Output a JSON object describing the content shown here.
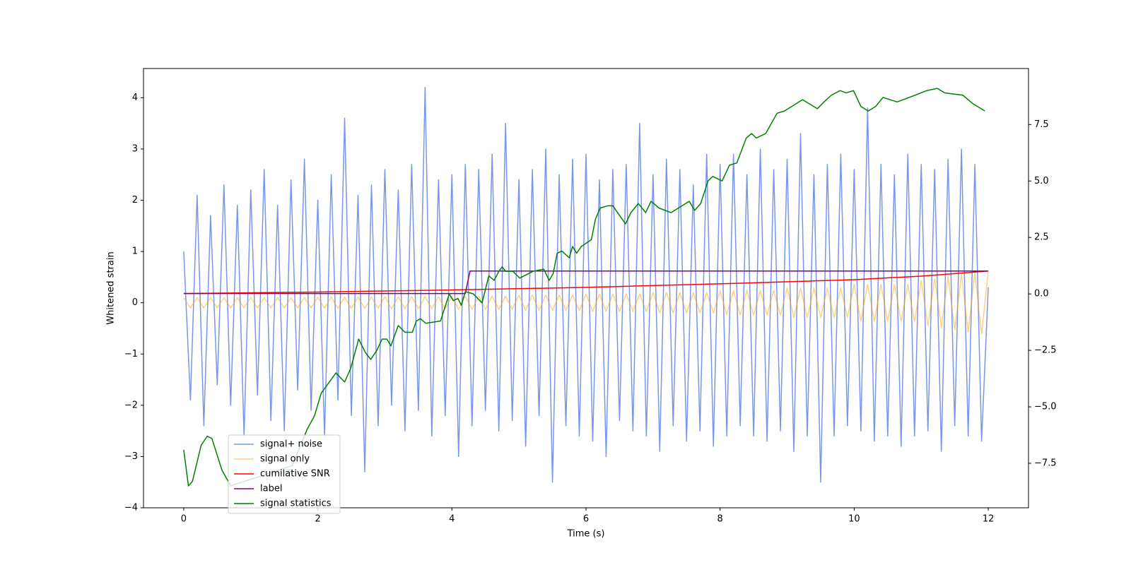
{
  "chart_data": {
    "type": "line",
    "xlabel": "Time (s)",
    "ylabel": "Whitened strain",
    "xlim": [
      -0.6,
      12.6
    ],
    "ylim": [
      -4,
      4.57
    ],
    "y2lim": [
      -9.47,
      9.98
    ],
    "xticks": [
      0,
      2,
      4,
      6,
      8,
      10,
      12
    ],
    "yticks": [
      {
        "value": -4,
        "label": "−4"
      },
      {
        "value": -3,
        "label": "−3"
      },
      {
        "value": -2,
        "label": "−2"
      },
      {
        "value": -1,
        "label": "−1"
      },
      0,
      1,
      2,
      3,
      4
    ],
    "y2ticks": [
      {
        "value": -7.5,
        "label": "−7.5"
      },
      {
        "value": -5,
        "label": "−5.0"
      },
      {
        "value": -2.5,
        "label": "−2.5"
      },
      {
        "value": 0,
        "label": "0.0"
      },
      2.5,
      {
        "value": 5,
        "label": "5.0"
      },
      7.5
    ],
    "legend": "lower left",
    "x": [
      0,
      0.1,
      0.2,
      0.3,
      0.4,
      0.5,
      0.6,
      0.7,
      0.8,
      0.9,
      1,
      1.1,
      1.2,
      1.3,
      1.4,
      1.5,
      1.6,
      1.7,
      1.8,
      1.9,
      2,
      2.1,
      2.2,
      2.3,
      2.4,
      2.5,
      2.6,
      2.7,
      2.8,
      2.9,
      3,
      3.1,
      3.2,
      3.3,
      3.4,
      3.5,
      3.6,
      3.7,
      3.8,
      3.9,
      4,
      4.1,
      4.2,
      4.3,
      4.4,
      4.5,
      4.6,
      4.7,
      4.8,
      4.9,
      5,
      5.1,
      5.2,
      5.3,
      5.4,
      5.5,
      5.6,
      5.7,
      5.8,
      5.9,
      6,
      6.1,
      6.2,
      6.3,
      6.4,
      6.5,
      6.6,
      6.7,
      6.8,
      6.9,
      7,
      7.1,
      7.2,
      7.3,
      7.4,
      7.5,
      7.6,
      7.7,
      7.8,
      7.9,
      8,
      8.1,
      8.2,
      8.3,
      8.4,
      8.5,
      8.6,
      8.7,
      8.8,
      8.9,
      9,
      9.1,
      9.2,
      9.3,
      9.4,
      9.5,
      9.6,
      9.7,
      9.8,
      9.9,
      10,
      10.1,
      10.2,
      10.3,
      10.4,
      10.5,
      10.6,
      10.7,
      10.8,
      10.9,
      11,
      11.1,
      11.2,
      11.3,
      11.4,
      11.5,
      11.6,
      11.7,
      11.8,
      11.9,
      12
    ],
    "series": [
      {
        "name": "signal+ noise",
        "color": "#4169e1",
        "alpha": 0.7,
        "values": [
          1.0,
          -1.9,
          2.1,
          -2.4,
          1.7,
          -1.6,
          2.3,
          -2.0,
          1.9,
          -2.6,
          2.2,
          -1.8,
          2.6,
          -2.3,
          1.9,
          -2.5,
          2.4,
          -1.7,
          2.8,
          -2.1,
          2.0,
          -2.6,
          2.5,
          -1.9,
          3.6,
          -2.2,
          2.1,
          -3.3,
          2.3,
          -2.4,
          2.6,
          -2.0,
          2.2,
          -2.5,
          2.7,
          -2.1,
          4.2,
          -2.6,
          2.4,
          -2.2,
          2.5,
          -3.0,
          2.7,
          -2.4,
          2.6,
          -2.1,
          2.9,
          -2.5,
          3.5,
          -2.3,
          2.4,
          -2.8,
          2.6,
          -2.2,
          3.0,
          -3.5,
          2.5,
          -2.4,
          2.8,
          -2.6,
          2.9,
          -2.7,
          2.4,
          -3.0,
          2.6,
          -2.3,
          2.7,
          -2.5,
          3.5,
          -2.6,
          2.5,
          -2.9,
          2.8,
          -2.4,
          2.6,
          -2.7,
          2.3,
          -2.5,
          2.9,
          -2.8,
          2.7,
          -2.6,
          2.9,
          -2.4,
          2.5,
          -2.6,
          3.0,
          -2.7,
          2.6,
          -2.5,
          2.8,
          -2.9,
          3.3,
          -2.6,
          2.5,
          -3.5,
          2.7,
          -2.6,
          2.9,
          -2.4,
          2.6,
          -2.5,
          3.8,
          -2.7,
          2.7,
          -2.6,
          2.5,
          -2.8,
          2.9,
          -2.6,
          2.7,
          -2.5,
          2.6,
          -2.9,
          2.8,
          -2.4,
          3.0,
          -2.6,
          2.7,
          -2.7,
          0.3
        ]
      },
      {
        "name": "signal only",
        "color": "#ffa500",
        "alpha": 0.5,
        "values": [
          0.1,
          -0.1,
          0.1,
          -0.1,
          0.1,
          -0.1,
          0.1,
          -0.1,
          0.1,
          -0.1,
          0.1,
          -0.1,
          0.1,
          -0.1,
          0.1,
          -0.1,
          0.1,
          -0.1,
          0.1,
          -0.1,
          0.11,
          -0.11,
          0.11,
          -0.11,
          0.11,
          -0.11,
          0.11,
          -0.11,
          0.11,
          -0.11,
          0.12,
          -0.12,
          0.12,
          -0.12,
          0.12,
          -0.12,
          0.12,
          -0.12,
          0.12,
          -0.12,
          0.13,
          -0.13,
          0.13,
          -0.13,
          0.13,
          -0.13,
          0.13,
          -0.13,
          0.13,
          -0.13,
          0.15,
          -0.15,
          0.15,
          -0.15,
          0.15,
          -0.15,
          0.15,
          -0.15,
          0.15,
          -0.15,
          0.17,
          -0.17,
          0.17,
          -0.17,
          0.17,
          -0.17,
          0.17,
          -0.17,
          0.17,
          -0.17,
          0.2,
          -0.2,
          0.2,
          -0.2,
          0.2,
          -0.2,
          0.2,
          -0.2,
          0.2,
          -0.2,
          0.24,
          -0.24,
          0.24,
          -0.24,
          0.24,
          -0.24,
          0.24,
          -0.24,
          0.24,
          -0.24,
          0.29,
          -0.29,
          0.29,
          -0.29,
          0.29,
          -0.29,
          0.29,
          -0.29,
          0.29,
          -0.29,
          0.36,
          -0.36,
          0.36,
          -0.36,
          0.36,
          -0.36,
          0.36,
          -0.36,
          0.36,
          -0.36,
          0.43,
          -0.45,
          0.47,
          -0.49,
          0.51,
          -0.53,
          0.55,
          -0.57,
          0.59,
          -0.61,
          0.62
        ]
      },
      {
        "name": "cumilative SNR",
        "color": "#ff0000",
        "x": [
          0,
          2,
          4,
          6,
          8,
          10,
          11,
          12
        ],
        "values": [
          0.18,
          0.21,
          0.25,
          0.3,
          0.37,
          0.45,
          0.52,
          0.62
        ]
      },
      {
        "name": "label",
        "color": "#800080",
        "x": [
          0,
          4.2,
          4.27,
          12
        ],
        "values": [
          0.18,
          0.18,
          0.62,
          0.62
        ]
      },
      {
        "name": "signal statistics",
        "color": "#008000",
        "axis": "y2",
        "x": [
          0,
          0.07,
          0.13,
          0.26,
          0.35,
          0.42,
          0.57,
          0.7,
          1.62,
          1.84,
          1.95,
          2.05,
          2.27,
          2.4,
          2.49,
          2.61,
          2.71,
          2.79,
          2.88,
          2.96,
          3.03,
          3.09,
          3.2,
          3.3,
          3.41,
          3.47,
          3.53,
          3.61,
          3.83,
          3.96,
          4.02,
          4.09,
          4.14,
          4.2,
          4.32,
          4.45,
          4.55,
          4.63,
          4.7,
          4.75,
          4.8,
          4.91,
          5.01,
          5.21,
          5.37,
          5.45,
          5.51,
          5.57,
          5.64,
          5.75,
          5.8,
          5.86,
          5.93,
          6.08,
          6.14,
          6.21,
          6.32,
          6.4,
          6.59,
          6.67,
          6.78,
          6.89,
          6.97,
          7.09,
          7.27,
          7.54,
          7.62,
          7.71,
          7.82,
          7.89,
          8.03,
          8.14,
          8.25,
          8.39,
          8.47,
          8.54,
          8.68,
          8.85,
          8.96,
          9.23,
          9.34,
          9.45,
          9.55,
          9.66,
          9.79,
          9.88,
          9.99,
          10.1,
          10.21,
          10.32,
          10.43,
          10.64,
          10.91,
          11.08,
          11.24,
          11.35,
          11.62,
          11.78,
          11.95
        ],
        "values": [
          -6.9,
          -8.5,
          -8.3,
          -6.7,
          -6.3,
          -6.4,
          -7.8,
          -8.5,
          -7.6,
          -6.0,
          -5.4,
          -4.4,
          -3.5,
          -3.9,
          -3.3,
          -2.0,
          -2.6,
          -2.9,
          -2.5,
          -2.0,
          -2.0,
          -2.3,
          -1.4,
          -1.7,
          -1.7,
          -1.2,
          -1.1,
          -1.3,
          -1.2,
          0,
          -0.3,
          -0.2,
          -0.5,
          0.1,
          0,
          -0.4,
          0.8,
          0.6,
          1.0,
          1.2,
          1.0,
          1.0,
          0.7,
          1.0,
          1.1,
          0.6,
          0.9,
          1.8,
          1.9,
          1.6,
          2.1,
          1.8,
          2.1,
          2.4,
          3.3,
          3.8,
          3.9,
          3.9,
          3.1,
          3.6,
          4.0,
          3.6,
          4.1,
          3.8,
          3.6,
          4.1,
          3.7,
          4.0,
          5.0,
          5.2,
          5.0,
          5.7,
          5.8,
          6.9,
          7.1,
          6.9,
          7.1,
          8.0,
          8.1,
          8.6,
          8.4,
          8.2,
          8.5,
          8.8,
          9.0,
          8.9,
          9.0,
          8.3,
          8.1,
          8.3,
          8.7,
          8.5,
          8.8,
          9.0,
          9.1,
          8.9,
          8.8,
          8.4,
          8.1
        ]
      }
    ]
  }
}
